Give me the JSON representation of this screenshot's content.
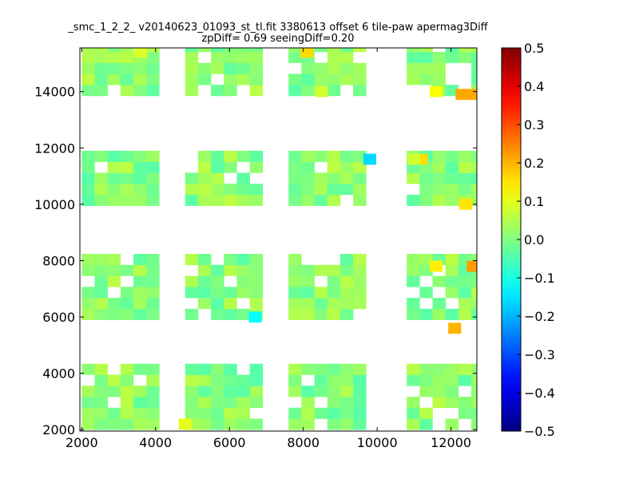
{
  "chart_data": {
    "type": "heatmap",
    "title_line1": "_smc_1_2_2_ v20140623_01093_st_tl.fit 3380613 offset 6 tile-paw apermag3Diff",
    "title_line2": "zpDiff= 0.69 seeingDiff=0.20",
    "xlabel": "",
    "ylabel": "",
    "xlim": [
      1950,
      12700
    ],
    "ylim": [
      1950,
      15550
    ],
    "xticks": [
      "2000",
      "4000",
      "6000",
      "8000",
      "10000",
      "12000"
    ],
    "yticks": [
      "2000",
      "4000",
      "6000",
      "8000",
      "10000",
      "12000",
      "14000"
    ],
    "grid": false,
    "colormap": "jet",
    "colorbar": {
      "vmin": -0.5,
      "vmax": 0.5,
      "ticks": [
        "0.5",
        "0.4",
        "0.3",
        "0.2",
        "0.1",
        "0.0",
        "−0.1",
        "−0.2",
        "−0.3",
        "−0.4",
        "−0.5"
      ]
    },
    "cell_size": [
      350,
      390
    ],
    "cell_background_value": 0.01,
    "cell_blocks": [
      {
        "x_range": [
          2000,
          4100
        ],
        "y_ranges": [
          [
            13850,
            15550
          ],
          [
            9950,
            11900
          ],
          [
            5900,
            7950
          ],
          [
            2000,
            4100
          ]
        ]
      },
      {
        "x_range": [
          4800,
          6900
        ],
        "y_ranges": [
          [
            13850,
            15550
          ],
          [
            9950,
            11900
          ],
          [
            5900,
            7950
          ],
          [
            2000,
            4100
          ]
        ]
      },
      {
        "x_range": [
          7600,
          9700
        ],
        "y_ranges": [
          [
            13850,
            15550
          ],
          [
            9950,
            11900
          ],
          [
            5900,
            7950
          ],
          [
            2000,
            4100
          ]
        ]
      },
      {
        "x_range": [
          10800,
          12700
        ],
        "y_ranges": [
          [
            13850,
            15550
          ],
          [
            9950,
            11900
          ],
          [
            5900,
            7950
          ],
          [
            2000,
            4100
          ]
        ]
      }
    ],
    "highlight_cells": [
      {
        "x": 8100,
        "y": 15400,
        "value": 0.16
      },
      {
        "x": 3600,
        "y": 15400,
        "value": 0.09
      },
      {
        "x": 11200,
        "y": 11600,
        "value": 0.16
      },
      {
        "x": 9800,
        "y": 11600,
        "value": -0.16
      },
      {
        "x": 12300,
        "y": 13900,
        "value": 0.21
      },
      {
        "x": 12600,
        "y": 13900,
        "value": 0.21
      },
      {
        "x": 12400,
        "y": 10000,
        "value": 0.15
      },
      {
        "x": 12600,
        "y": 7800,
        "value": 0.22
      },
      {
        "x": 12100,
        "y": 5600,
        "value": 0.2
      },
      {
        "x": 11600,
        "y": 7800,
        "value": 0.14
      },
      {
        "x": 6700,
        "y": 6000,
        "value": -0.12
      },
      {
        "x": 8500,
        "y": 14000,
        "value": 0.08
      },
      {
        "x": 4800,
        "y": 2200,
        "value": 0.1
      },
      {
        "x": 11000,
        "y": 11600,
        "value": 0.08
      },
      {
        "x": 11600,
        "y": 14000,
        "value": 0.12
      }
    ]
  }
}
